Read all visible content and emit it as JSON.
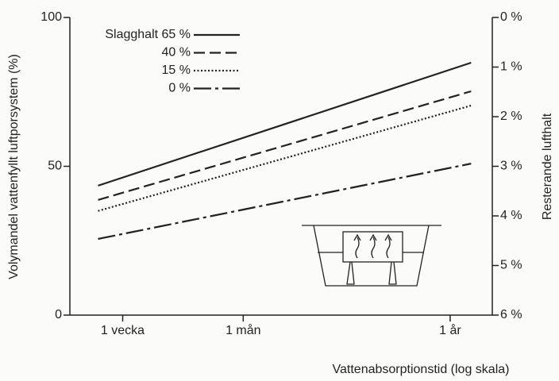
{
  "chart_data": {
    "type": "line",
    "y_label": "Volymandel vattenfyllt luftporsystem (%)",
    "y2_label": "Resterande lufthalt",
    "x_label": "Vattenabsorptionstid (log skala)",
    "xscale": "log",
    "xlim": [
      3.7,
      607
    ],
    "xticks": [
      {
        "value": 7,
        "label": "1 vecka"
      },
      {
        "value": 30,
        "label": "1 mån"
      },
      {
        "value": 365,
        "label": "1 år"
      }
    ],
    "ylim": [
      0,
      100
    ],
    "yticks": [
      0,
      50,
      100
    ],
    "y2lim": [
      6,
      0
    ],
    "y2ticks": [
      {
        "value": 0,
        "label": "0 %"
      },
      {
        "value": 1,
        "label": "1 %"
      },
      {
        "value": 2,
        "label": "2 %"
      },
      {
        "value": 3,
        "label": "3 %"
      },
      {
        "value": 4,
        "label": "4 %"
      },
      {
        "value": 5,
        "label": "5 %"
      },
      {
        "value": 6,
        "label": "6 %"
      }
    ],
    "x": [
      5.2,
      470
    ],
    "series": [
      {
        "name": "Slagghalt 65 %",
        "color": "#222222",
        "linestyle": "solid",
        "values": [
          43.5,
          84.8
        ]
      },
      {
        "name": "40 %",
        "color": "#222222",
        "linestyle": "dashed",
        "values": [
          38.7,
          75.2
        ]
      },
      {
        "name": "15 %",
        "color": "#222222",
        "linestyle": "dotted",
        "values": [
          35,
          70.4
        ]
      },
      {
        "name": "0 %",
        "color": "#222222",
        "linestyle": "longdash",
        "values": [
          25.6,
          50.9
        ]
      }
    ]
  }
}
